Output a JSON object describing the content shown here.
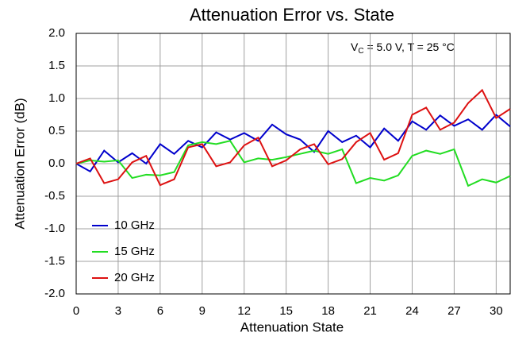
{
  "chart_data": {
    "type": "line",
    "title": "Attenuation Error vs. State",
    "annotation": {
      "main": "V",
      "sub": "C",
      "rest": " = 5.0 V, T = 25 °C"
    },
    "x_label": "Attenuation State",
    "y_label": "Attenuation Error (dB)",
    "x": [
      0,
      1,
      2,
      3,
      4,
      5,
      6,
      7,
      8,
      9,
      10,
      11,
      12,
      13,
      14,
      15,
      16,
      17,
      18,
      19,
      20,
      21,
      22,
      23,
      24,
      25,
      26,
      27,
      28,
      29,
      30,
      31
    ],
    "series": [
      {
        "name": "10 GHz",
        "color": "#0000cc",
        "values": [
          0,
          -0.12,
          0.2,
          0.02,
          0.16,
          0,
          0.3,
          0.15,
          0.35,
          0.25,
          0.48,
          0.37,
          0.47,
          0.35,
          0.6,
          0.45,
          0.37,
          0.18,
          0.5,
          0.33,
          0.43,
          0.25,
          0.54,
          0.35,
          0.65,
          0.52,
          0.74,
          0.58,
          0.68,
          0.52,
          0.75,
          0.57
        ]
      },
      {
        "name": "15 GHz",
        "color": "#22dd22",
        "values": [
          0,
          0.05,
          0.03,
          0.05,
          -0.22,
          -0.17,
          -0.18,
          -0.13,
          0.28,
          0.33,
          0.3,
          0.35,
          0.02,
          0.08,
          0.06,
          0.1,
          0.15,
          0.2,
          0.15,
          0.22,
          -0.3,
          -0.22,
          -0.26,
          -0.18,
          0.12,
          0.2,
          0.15,
          0.22,
          -0.34,
          -0.24,
          -0.29,
          -0.19
        ]
      },
      {
        "name": "20 GHz",
        "color": "#dd1111",
        "values": [
          0,
          0.08,
          -0.3,
          -0.24,
          0.02,
          0.12,
          -0.33,
          -0.24,
          0.25,
          0.3,
          -0.04,
          0.02,
          0.28,
          0.4,
          -0.04,
          0.05,
          0.22,
          0.3,
          -0.01,
          0.07,
          0.33,
          0.47,
          0.06,
          0.16,
          0.75,
          0.86,
          0.52,
          0.63,
          0.93,
          1.13,
          0.7,
          0.84
        ]
      }
    ],
    "xlim": [
      0,
      31
    ],
    "xticks": [
      0,
      3,
      6,
      9,
      12,
      15,
      18,
      21,
      24,
      27,
      30
    ],
    "ylim": [
      -2,
      2
    ],
    "yticks": [
      {
        "value": -2,
        "label": "-2.0"
      },
      {
        "value": -1.5,
        "label": "-1.5"
      },
      {
        "value": -1,
        "label": "-1.0"
      },
      {
        "value": -0.5,
        "label": "-0.5"
      },
      {
        "value": 0,
        "label": "0.0"
      },
      {
        "value": 0.5,
        "label": "0.5"
      },
      {
        "value": 1,
        "label": "1.0"
      },
      {
        "value": 1.5,
        "label": "1.5"
      },
      {
        "value": 2,
        "label": "2.0"
      }
    ],
    "grid": true,
    "legend": "lower left"
  }
}
